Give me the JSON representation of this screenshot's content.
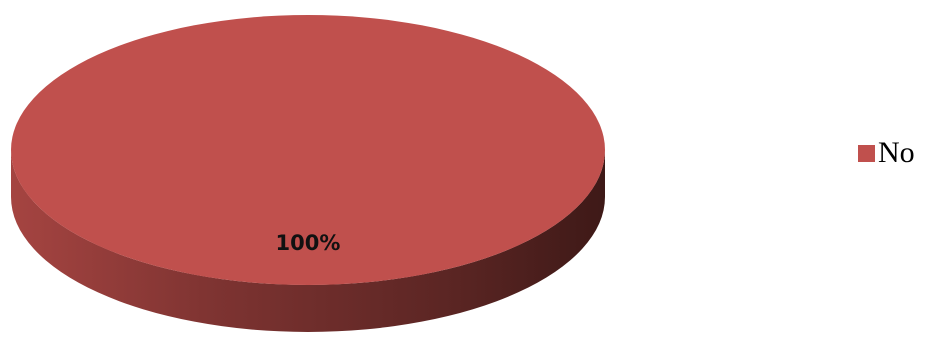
{
  "chart_data": {
    "type": "pie",
    "style": "3d",
    "title": "",
    "slices": [
      {
        "label": "No",
        "value": 100,
        "percent_label": "100%",
        "color": "#c0504d"
      }
    ],
    "legend": {
      "position": "right",
      "entries": [
        "No"
      ]
    }
  }
}
